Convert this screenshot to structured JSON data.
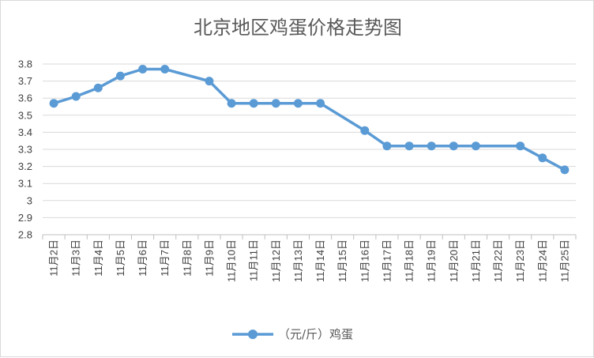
{
  "chart_data": {
    "type": "line",
    "title": "北京地区鸡蛋价格走势图",
    "categories": [
      "11月2日",
      "11月3日",
      "11月4日",
      "11月5日",
      "11月6日",
      "11月7日",
      "11月8日",
      "11月9日",
      "11月10日",
      "11月11日",
      "11月12日",
      "11月13日",
      "11月14日",
      "11月15日",
      "11月16日",
      "11月17日",
      "11月18日",
      "11月19日",
      "11月20日",
      "11月21日",
      "11月22日",
      "11月23日",
      "11月24日",
      "11月25日"
    ],
    "series": [
      {
        "name": "（元/斤）鸡蛋",
        "values": [
          3.57,
          3.61,
          3.66,
          3.73,
          3.77,
          3.77,
          null,
          3.7,
          3.57,
          3.57,
          3.57,
          3.57,
          3.57,
          null,
          3.41,
          3.32,
          3.32,
          3.32,
          3.32,
          3.32,
          null,
          3.32,
          3.25,
          3.18
        ],
        "color": "#5b9bd5"
      }
    ],
    "yticks": [
      "2.8",
      "2.9",
      "3",
      "3.1",
      "3.2",
      "3.3",
      "3.4",
      "3.5",
      "3.6",
      "3.7",
      "3.8"
    ],
    "ylim": [
      2.8,
      3.8
    ],
    "grid": true,
    "legend_position": "bottom"
  }
}
